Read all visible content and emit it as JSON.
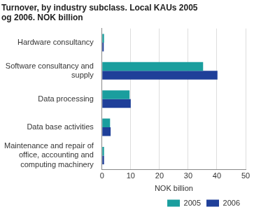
{
  "chart_data": {
    "type": "bar",
    "orientation": "horizontal",
    "title": "Turnover, by industry subclass. Local KAUs 2005 og 2006. NOK billion",
    "x_label": "NOK billion",
    "categories": [
      "Hardware consultancy",
      "Software consultancy and supply",
      "Data processing",
      "Data base activities",
      "Maintenance and repair of office, accounting and computing machinery"
    ],
    "series": [
      {
        "name": "2005",
        "color": "#1a9e9e",
        "values": [
          0.7,
          35.2,
          9.6,
          2.8,
          0.7
        ]
      },
      {
        "name": "2006",
        "color": "#1f3f99",
        "values": [
          0.6,
          40.2,
          10.0,
          3.0,
          0.7
        ]
      }
    ],
    "xlim": [
      0,
      50
    ],
    "xticks": [
      0,
      10,
      20,
      30,
      40,
      50
    ],
    "grid": true,
    "legend": "bottom"
  }
}
